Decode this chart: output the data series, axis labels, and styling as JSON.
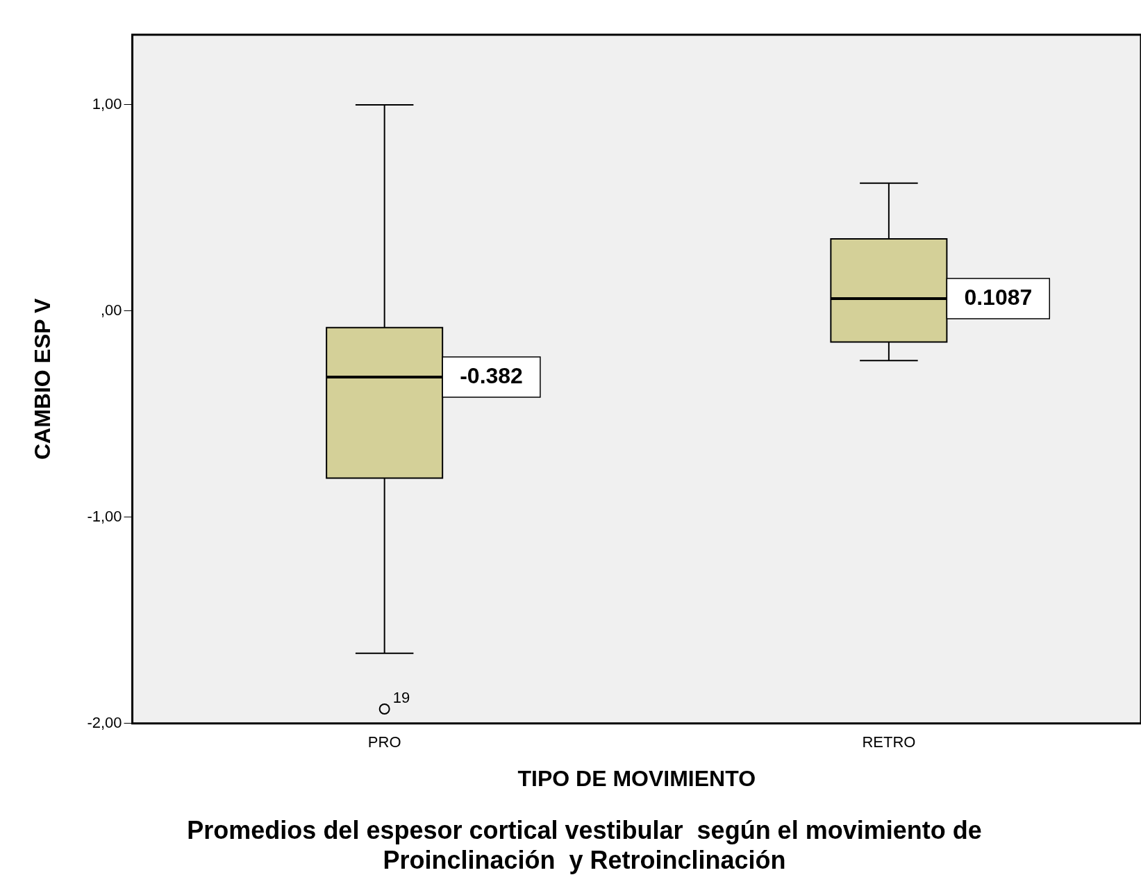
{
  "chart_data": {
    "type": "box",
    "title": "Promedios del espesor cortical vestibular  según el movimiento de Proinclinación  y Retroinclinación",
    "xlabel": "TIPO DE MOVIMIENTO",
    "ylabel": "CAMBIO ESP V",
    "categories": [
      "PRO",
      "RETRO"
    ],
    "series": [
      {
        "color": "#d4d098",
        "boxes": [
          {
            "low": -1.66,
            "q1": -0.81,
            "median": -0.32,
            "q3": -0.08,
            "high": 1.0,
            "outliers": [
              -1.93
            ]
          },
          {
            "low": -0.24,
            "q1": -0.15,
            "median": 0.06,
            "q3": 0.35,
            "high": 0.62
          }
        ]
      }
    ],
    "ylim": [
      -2,
      1.34
    ],
    "yticks": [
      {
        "value": -2,
        "label": "-2,00"
      },
      {
        "value": -1,
        "label": "-1,00"
      },
      {
        "value": 0,
        "label": ",00"
      },
      {
        "value": 1,
        "label": "1,00"
      }
    ],
    "annotations": [
      "-0.382",
      "0.1087",
      "19"
    ],
    "grid": false,
    "legend": false
  }
}
